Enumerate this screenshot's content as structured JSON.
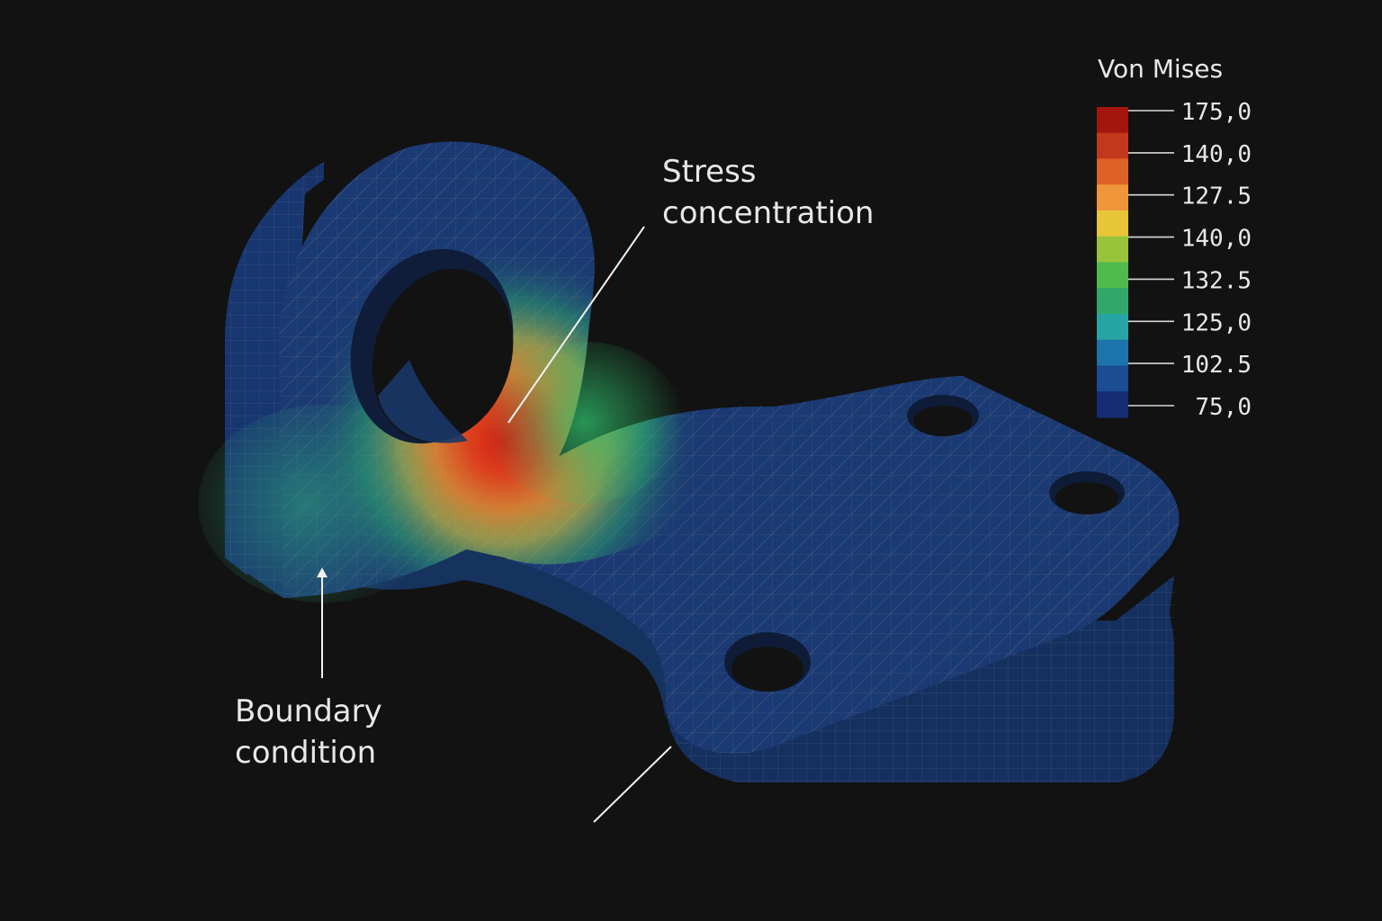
{
  "callouts": {
    "stress": {
      "line1": "Stress",
      "line2": "concentration"
    },
    "boundary": {
      "line1": "Boundary",
      "line2": "condition"
    }
  },
  "legend": {
    "title": "Von Mises",
    "labels": [
      "175,0",
      "140,0",
      "127.5",
      "140,0",
      "132.5",
      "125,0",
      "102.5",
      "75,0"
    ],
    "colors": [
      "#a3160e",
      "#c2381d",
      "#de6226",
      "#f0963a",
      "#e8c437",
      "#98c43c",
      "#4fbb4c",
      "#2fa86a",
      "#27a4a4",
      "#1d74ac",
      "#1b4c94",
      "#162c74"
    ]
  },
  "colors": {
    "part_base": "#1b3a73",
    "part_dark": "#142c5a",
    "mesh_line": "#4d5f7e",
    "hot": "#d21e12",
    "warm": "#ef7a24",
    "mid": "#ead23a",
    "cool": "#2fbf6a"
  }
}
